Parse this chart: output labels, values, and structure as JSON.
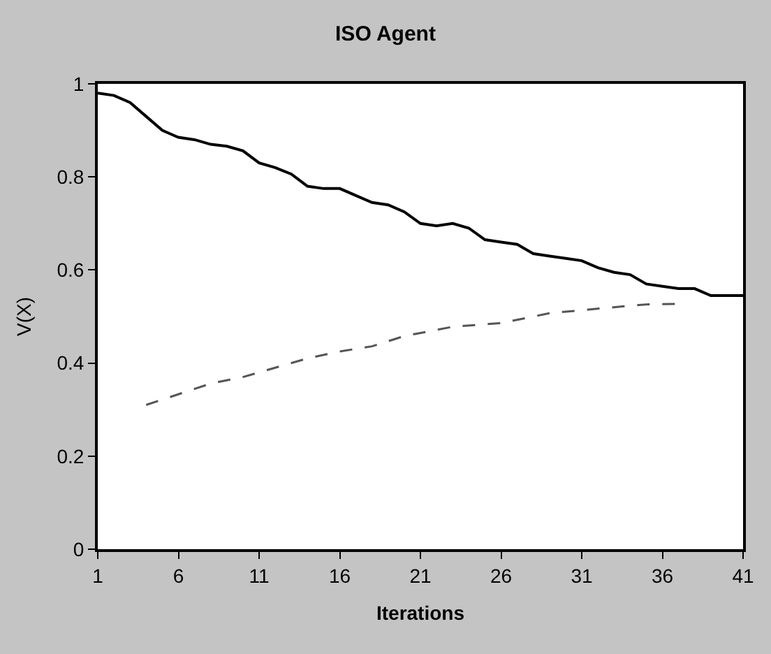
{
  "chart_data": {
    "type": "line",
    "title": "ISO Agent",
    "xlabel": "Iterations",
    "ylabel": "V(X)",
    "xlim": [
      1,
      41
    ],
    "xticks": [
      1,
      6,
      11,
      16,
      21,
      26,
      31,
      36,
      41
    ],
    "ylim": [
      0,
      1
    ],
    "yticks": [
      0,
      0.2,
      0.4,
      0.6,
      0.8,
      1
    ],
    "marker": "none",
    "series": [
      {
        "color": "#000000",
        "line_style": "solid",
        "x": [
          1,
          2,
          3,
          4,
          5,
          6,
          7,
          8,
          9,
          10,
          11,
          12,
          13,
          14,
          15,
          16,
          17,
          18,
          19,
          20,
          21,
          22,
          23,
          24,
          25,
          26,
          27,
          28,
          29,
          30,
          31,
          32,
          33,
          34,
          35,
          36,
          37,
          38,
          39,
          40,
          41
        ],
        "values": [
          0.98,
          0.975,
          0.96,
          0.93,
          0.9,
          0.885,
          0.88,
          0.87,
          0.866,
          0.856,
          0.83,
          0.82,
          0.806,
          0.78,
          0.775,
          0.775,
          0.76,
          0.745,
          0.74,
          0.725,
          0.7,
          0.695,
          0.7,
          0.69,
          0.665,
          0.66,
          0.655,
          0.635,
          0.63,
          0.625,
          0.62,
          0.605,
          0.595,
          0.59,
          0.57,
          0.565,
          0.56,
          0.56,
          0.545,
          0.545,
          0.545
        ]
      },
      {
        "color": "#555555",
        "line_style": "dashed",
        "x": [
          4,
          6,
          8,
          10,
          12,
          14,
          16,
          18,
          20,
          23,
          26,
          29,
          32,
          35,
          37
        ],
        "values": [
          0.31,
          0.333,
          0.356,
          0.37,
          0.39,
          0.41,
          0.425,
          0.436,
          0.458,
          0.478,
          0.486,
          0.507,
          0.517,
          0.526,
          0.527
        ]
      }
    ]
  }
}
